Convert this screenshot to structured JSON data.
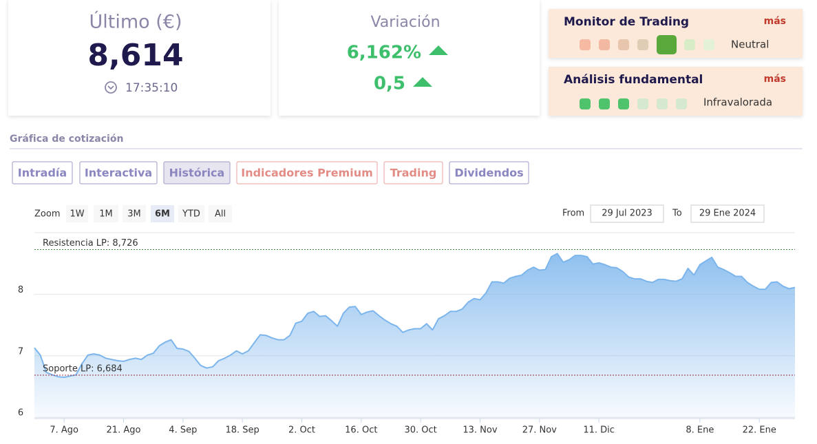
{
  "quote": {
    "title": "Último (€)",
    "price": "8,614",
    "time": "17:35:10"
  },
  "variation": {
    "title": "Variación",
    "percent": "6,162%",
    "absolute": "0,5"
  },
  "monitor": {
    "title": "Monitor de Trading",
    "more": "más",
    "status": "Neutral"
  },
  "fundamental": {
    "title": "Análisis fundamental",
    "more": "más",
    "status": "Infravalorada"
  },
  "section_title": "Gráfica de cotización",
  "tabs": [
    "Intradía",
    "Interactiva",
    "Histórica",
    "Indicadores Premium",
    "Trading",
    "Dividendos"
  ],
  "zoom": {
    "label": "Zoom",
    "buttons": [
      "1W",
      "1M",
      "3M",
      "6M",
      "YTD",
      "All"
    ]
  },
  "range": {
    "from_label": "From",
    "from": "29 Jul 2023",
    "to_label": "To",
    "to": "29 Ene 2024"
  },
  "chart_data": {
    "type": "area",
    "categories": [
      null,
      null,
      null,
      null,
      null,
      "7. Ago",
      null,
      null,
      null,
      null,
      null,
      null,
      null,
      null,
      null,
      "21. Ago",
      null,
      null,
      null,
      null,
      null,
      null,
      null,
      null,
      null,
      "4. Sep",
      null,
      null,
      null,
      null,
      null,
      null,
      null,
      null,
      null,
      "18. Sep",
      null,
      null,
      null,
      null,
      null,
      null,
      null,
      null,
      null,
      "2. Oct",
      null,
      null,
      null,
      null,
      null,
      null,
      null,
      null,
      null,
      "16. Oct",
      null,
      null,
      null,
      null,
      null,
      null,
      null,
      null,
      null,
      "30. Oct",
      null,
      null,
      null,
      null,
      null,
      null,
      null,
      null,
      null,
      "13. Nov",
      null,
      null,
      null,
      null,
      null,
      null,
      null,
      null,
      null,
      "27. Nov",
      null,
      null,
      null,
      null,
      null,
      null,
      null,
      null,
      null,
      "11. Dic",
      null,
      null,
      null,
      null,
      null,
      null,
      null,
      null,
      null,
      null,
      null,
      null,
      null,
      null,
      null,
      null,
      "8. Ene",
      null,
      null,
      null,
      null,
      null,
      null,
      null,
      null,
      null,
      "22. Ene",
      null,
      null,
      null,
      null,
      null,
      null
    ],
    "values": [
      7.13,
      7.01,
      6.73,
      6.69,
      6.66,
      6.65,
      6.67,
      6.69,
      6.87,
      7.01,
      7.03,
      7.01,
      6.96,
      6.94,
      6.92,
      6.91,
      6.94,
      6.96,
      6.94,
      7.01,
      7.04,
      7.16,
      7.22,
      7.26,
      7.12,
      7.11,
      7.07,
      6.96,
      6.84,
      6.8,
      6.82,
      6.92,
      6.96,
      7.01,
      7.08,
      7.03,
      7.08,
      7.21,
      7.34,
      7.33,
      7.29,
      7.26,
      7.26,
      7.33,
      7.53,
      7.56,
      7.69,
      7.72,
      7.64,
      7.65,
      7.57,
      7.48,
      7.69,
      7.79,
      7.8,
      7.67,
      7.71,
      7.73,
      7.65,
      7.58,
      7.52,
      7.48,
      7.38,
      7.42,
      7.44,
      7.44,
      7.52,
      7.42,
      7.6,
      7.65,
      7.72,
      7.72,
      7.76,
      7.87,
      7.93,
      7.91,
      8.02,
      8.2,
      8.2,
      8.18,
      8.26,
      8.29,
      8.31,
      8.39,
      8.44,
      8.39,
      8.4,
      8.61,
      8.66,
      8.52,
      8.56,
      8.63,
      8.63,
      8.61,
      8.49,
      8.51,
      8.48,
      8.44,
      8.43,
      8.37,
      8.28,
      8.25,
      8.25,
      8.21,
      8.19,
      8.24,
      8.24,
      8.22,
      8.21,
      8.25,
      8.42,
      8.31,
      8.48,
      8.54,
      8.6,
      8.44,
      8.4,
      8.35,
      8.29,
      8.29,
      8.19,
      8.13,
      8.08,
      8.08,
      8.19,
      8.2,
      8.13,
      8.09,
      8.11
    ],
    "color": "#7cb5ec",
    "ylim": [
      5.98,
      9.0
    ],
    "yticks": [
      6,
      7,
      8
    ],
    "grid": true,
    "plot_lines": [
      {
        "value": 8.726,
        "label": "Resistencia LP: 8,726",
        "color": "#3a8f3a"
      },
      {
        "value": 6.684,
        "label": "Soporte LP: 6,684",
        "color": "#a0203a"
      }
    ]
  }
}
